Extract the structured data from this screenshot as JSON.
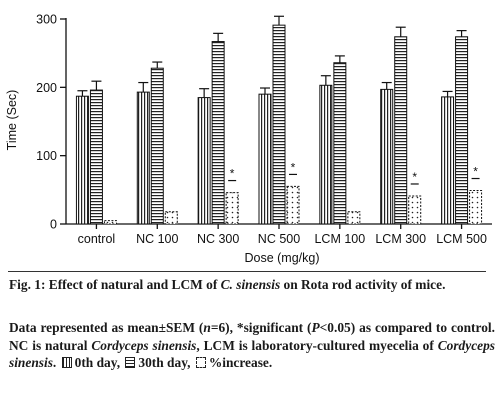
{
  "chart_data": {
    "type": "bar",
    "categories": [
      "control",
      "NC 100",
      "NC 300",
      "NC 500",
      "LCM 100",
      "LCM 300",
      "LCM 500"
    ],
    "series": [
      {
        "name": "0th day",
        "values": [
          187,
          193,
          185,
          190,
          203,
          197,
          186
        ],
        "errors": [
          8,
          14,
          13,
          9,
          14,
          10,
          8
        ]
      },
      {
        "name": "30th day",
        "values": [
          196,
          228,
          267,
          291,
          236,
          274,
          274
        ],
        "errors": [
          13,
          9,
          12,
          13,
          10,
          14,
          9
        ]
      },
      {
        "name": "%increase",
        "values": [
          5,
          18,
          46,
          55,
          18,
          41,
          49
        ],
        "errors": [
          0,
          0,
          0,
          0,
          0,
          0,
          0
        ]
      }
    ],
    "significant": [
      false,
      false,
      true,
      true,
      false,
      true,
      true
    ],
    "significance_marker": "*",
    "xlabel": "Dose (mg/kg)",
    "ylabel": "Time (Sec)",
    "ylim": [
      0,
      300
    ],
    "yticks": [
      "0",
      "100",
      "200",
      "300"
    ],
    "grid": false,
    "colors": {
      "axis": "#111111",
      "bar_fill": "#ffffff",
      "bar_pattern": "#222222"
    }
  },
  "caption": {
    "title_prefix": "Fig. 1: Effect of natural and LCM of ",
    "title_species": "C. sinensis",
    "title_suffix": " on Rota rod activity of mice.",
    "body_1": "Data represented as mean±SEM (",
    "body_n": "n",
    "body_2": "=6), *significant (",
    "body_p": "P",
    "body_3": "<0.05) as compared to control. NC is natural ",
    "body_species_1": "Cordyceps sinensis",
    "body_4": ", LCM is laboratory-cultured myecelia of ",
    "body_species_2": "Cordyceps sinensis",
    "body_5": ".",
    "legend_0": "0th day,",
    "legend_30": "30th day,",
    "legend_inc": "%increase."
  }
}
